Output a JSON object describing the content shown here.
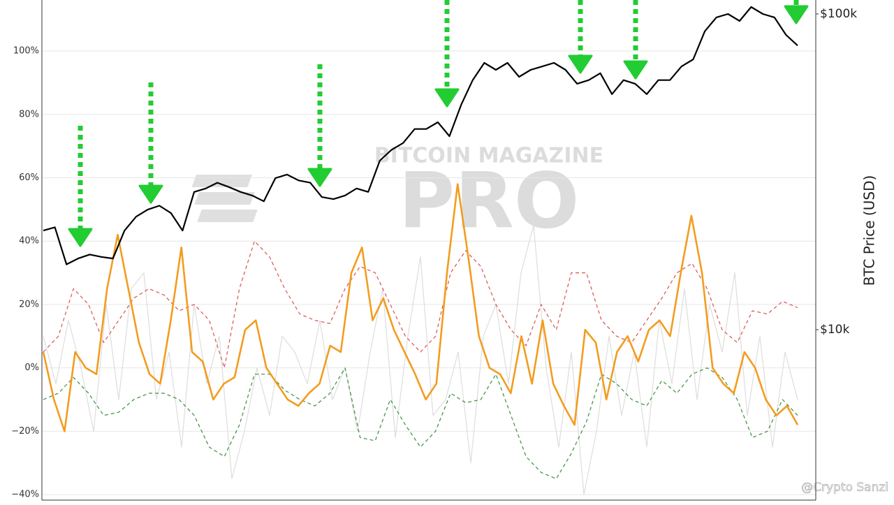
{
  "chart_data": {
    "type": "line",
    "ylim": [
      -42.4,
      116.1
    ],
    "yticks": [
      {
        "value": -40,
        "label": "−40%"
      },
      {
        "value": -20,
        "label": "−20%"
      },
      {
        "value": 0,
        "label": "0%"
      },
      {
        "value": 20,
        "label": "20%"
      },
      {
        "value": 40,
        "label": "40%"
      },
      {
        "value": 60,
        "label": "60%"
      },
      {
        "value": 80,
        "label": "80%"
      },
      {
        "value": 100,
        "label": "100%"
      }
    ],
    "y2lim": [
      2841,
      110700
    ],
    "y2ticks": [
      {
        "value": 10000,
        "label": "$10k"
      },
      {
        "value": 100000,
        "label": "$100k"
      }
    ],
    "y2scale": "log",
    "y2label": "BTC Price (USD)",
    "grid": true,
    "watermark": [
      "BITCOIN MAGAZINE",
      "PRO"
    ],
    "credit": "@Crypto Sanzi",
    "series": [
      {
        "color": "#dddddd",
        "width": 1.2,
        "dash": false,
        "values": [
          10,
          -5,
          15,
          0,
          -20,
          20,
          -10,
          25,
          30,
          -10,
          5,
          -25,
          20,
          -5,
          10,
          -35,
          -20,
          0,
          -15,
          10,
          5,
          -5,
          15,
          -10,
          0,
          -20,
          5,
          25,
          -22,
          10,
          35,
          -15,
          -10,
          5,
          -30,
          10,
          20,
          -5,
          30,
          45,
          0,
          -25,
          5,
          -40,
          -20,
          10,
          -15,
          5,
          -25,
          15,
          -5,
          25,
          -10,
          20,
          5,
          30,
          -15,
          10,
          -25,
          5,
          -10
        ]
      },
      {
        "color": "#d9534f",
        "width": 1.2,
        "dash": true,
        "values": [
          5,
          10,
          25,
          20,
          8,
          15,
          22,
          25,
          23,
          18,
          20,
          15,
          0,
          25,
          40,
          35,
          25,
          17,
          15,
          14,
          25,
          32,
          30,
          20,
          10,
          5,
          10,
          30,
          37,
          32,
          20,
          12,
          7,
          20,
          12,
          30,
          30,
          15,
          10,
          8,
          15,
          22,
          30,
          33,
          25,
          12,
          8,
          18,
          17,
          21,
          19
        ]
      },
      {
        "color": "#3a8f3a",
        "width": 1.2,
        "dash": true,
        "values": [
          -10,
          -8,
          -3,
          -8,
          -15,
          -14,
          -10,
          -8,
          -8,
          -10,
          -15,
          -25,
          -28,
          -18,
          -2,
          -2,
          -7,
          -10,
          -12,
          -8,
          0,
          -22,
          -23,
          -10,
          -18,
          -25,
          -20,
          -8,
          -11,
          -10,
          -2,
          -15,
          -28,
          -33,
          -35,
          -27,
          -17,
          -2,
          -5,
          -10,
          -12,
          -4,
          -8,
          -2,
          0,
          -3,
          -10,
          -22,
          -20,
          -10,
          -15
        ]
      },
      {
        "color": "#f39c1f",
        "width": 2.6,
        "dash": false,
        "values": [
          5,
          -10,
          -20,
          5,
          0,
          -2,
          25,
          42,
          25,
          8,
          -2,
          -5,
          15,
          38,
          5,
          2,
          -10,
          -5,
          -3,
          12,
          15,
          0,
          -5,
          -10,
          -12,
          -8,
          -5,
          7,
          5,
          30,
          38,
          15,
          22,
          12,
          5,
          -2,
          -10,
          -5,
          30,
          58,
          35,
          10,
          0,
          -2,
          -8,
          10,
          -5,
          15,
          -5,
          -12,
          -18,
          12,
          8,
          -10,
          5,
          10,
          2,
          12,
          15,
          10,
          30,
          48,
          30,
          0,
          -5,
          -8,
          5,
          0,
          -10,
          -15,
          -12,
          -18
        ]
      },
      {
        "color": "#000000",
        "width": 2.2,
        "dash": false,
        "axis": "y2",
        "values": [
          20600,
          21100,
          16100,
          16800,
          17300,
          17000,
          16800,
          20600,
          22800,
          24000,
          24700,
          23400,
          20600,
          27300,
          28000,
          29200,
          28300,
          27300,
          26600,
          25500,
          30200,
          31000,
          29700,
          29200,
          26300,
          25900,
          26600,
          28000,
          27300,
          34300,
          37100,
          39000,
          43200,
          43200,
          45400,
          41000,
          51500,
          61700,
          70000,
          66500,
          70000,
          63200,
          66500,
          68200,
          70000,
          66500,
          60100,
          61700,
          64900,
          55700,
          61700,
          60100,
          55700,
          61700,
          61700,
          68200,
          71800,
          88100,
          97500,
          100000,
          95000,
          105200,
          100000,
          97500,
          85800,
          79400
        ]
      }
    ]
  }
}
